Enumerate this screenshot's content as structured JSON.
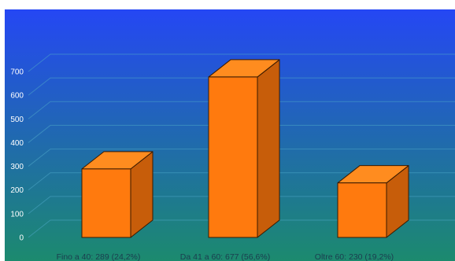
{
  "chart_data": {
    "type": "bar",
    "style": "3d",
    "categories": [
      "Fino a 40:  289 (24,2%)",
      "Da 41 a 60: 677 (56,6%)",
      "Oltre 60:  230  (19,2%)"
    ],
    "values": [
      289,
      677,
      230
    ],
    "ylim": [
      0,
      700
    ],
    "yticks": [
      "0",
      "100",
      "200",
      "300",
      "400",
      "500",
      "600",
      "700"
    ],
    "grid": true,
    "legend": "none",
    "colors": {
      "bar_front": "#FF7A0E",
      "bar_top": "#FF8C1F",
      "bar_side": "#C75D0A",
      "bar_edge": "#3A1A00",
      "background_top": "#2547F4",
      "background_bottom": "#1C8A6E",
      "gridline": "#4FA7C8",
      "tick_text": "#FFFFFF",
      "category_text": "#1B3D4F"
    }
  }
}
